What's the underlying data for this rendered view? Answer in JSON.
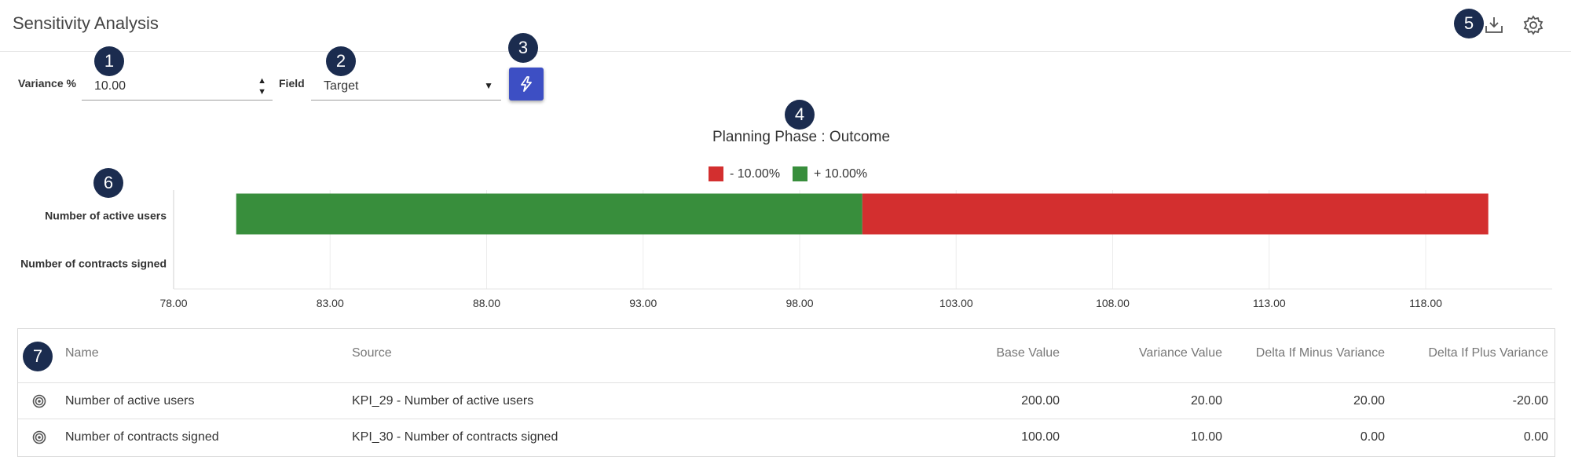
{
  "header": {
    "title": "Sensitivity Analysis",
    "download_icon": "download-icon",
    "settings_icon": "gear-icon"
  },
  "badges": [
    "1",
    "2",
    "3",
    "4",
    "5",
    "6",
    "7"
  ],
  "controls": {
    "variance_label": "Variance %",
    "variance_value": "10.00",
    "field_label": "Field",
    "field_value": "Target",
    "run_icon": "lightning-icon"
  },
  "colors": {
    "minus": "#d32f2f",
    "plus": "#388e3c",
    "accent": "#3d4fc4",
    "badge": "#1b2c4f"
  },
  "chart_data": {
    "type": "bar",
    "orientation": "horizontal",
    "title": "Planning Phase : Outcome",
    "legend": {
      "placement": "top-center",
      "entries": [
        "- 10.00%",
        "+ 10.00%"
      ]
    },
    "categories": [
      "Number of active users",
      "Number of contracts signed"
    ],
    "base": 100,
    "series": [
      {
        "name": "- 10.00%",
        "color": "#d32f2f",
        "values": [
          [
            100,
            120
          ],
          [
            100,
            100
          ]
        ]
      },
      {
        "name": "+ 10.00%",
        "color": "#388e3c",
        "values": [
          [
            80,
            100
          ],
          [
            100,
            100
          ]
        ]
      }
    ],
    "xlim": [
      78,
      122
    ],
    "xticks": [
      "78.00",
      "83.00",
      "88.00",
      "93.00",
      "98.00",
      "103.00",
      "108.00",
      "113.00",
      "118.00"
    ],
    "grid": true
  },
  "table": {
    "columns": [
      "Name",
      "Source",
      "Base Value",
      "Variance Value",
      "Delta If Minus Variance",
      "Delta If Plus Variance"
    ],
    "rows": [
      {
        "icon": "target-icon",
        "name": "Number of active users",
        "source": "KPI_29 - Number of active users",
        "base": "200.00",
        "variance": "20.00",
        "minus": "20.00",
        "plus": "-20.00"
      },
      {
        "icon": "target-icon",
        "name": "Number of contracts signed",
        "source": "KPI_30 - Number of contracts signed",
        "base": "100.00",
        "variance": "10.00",
        "minus": "0.00",
        "plus": "0.00"
      }
    ]
  }
}
